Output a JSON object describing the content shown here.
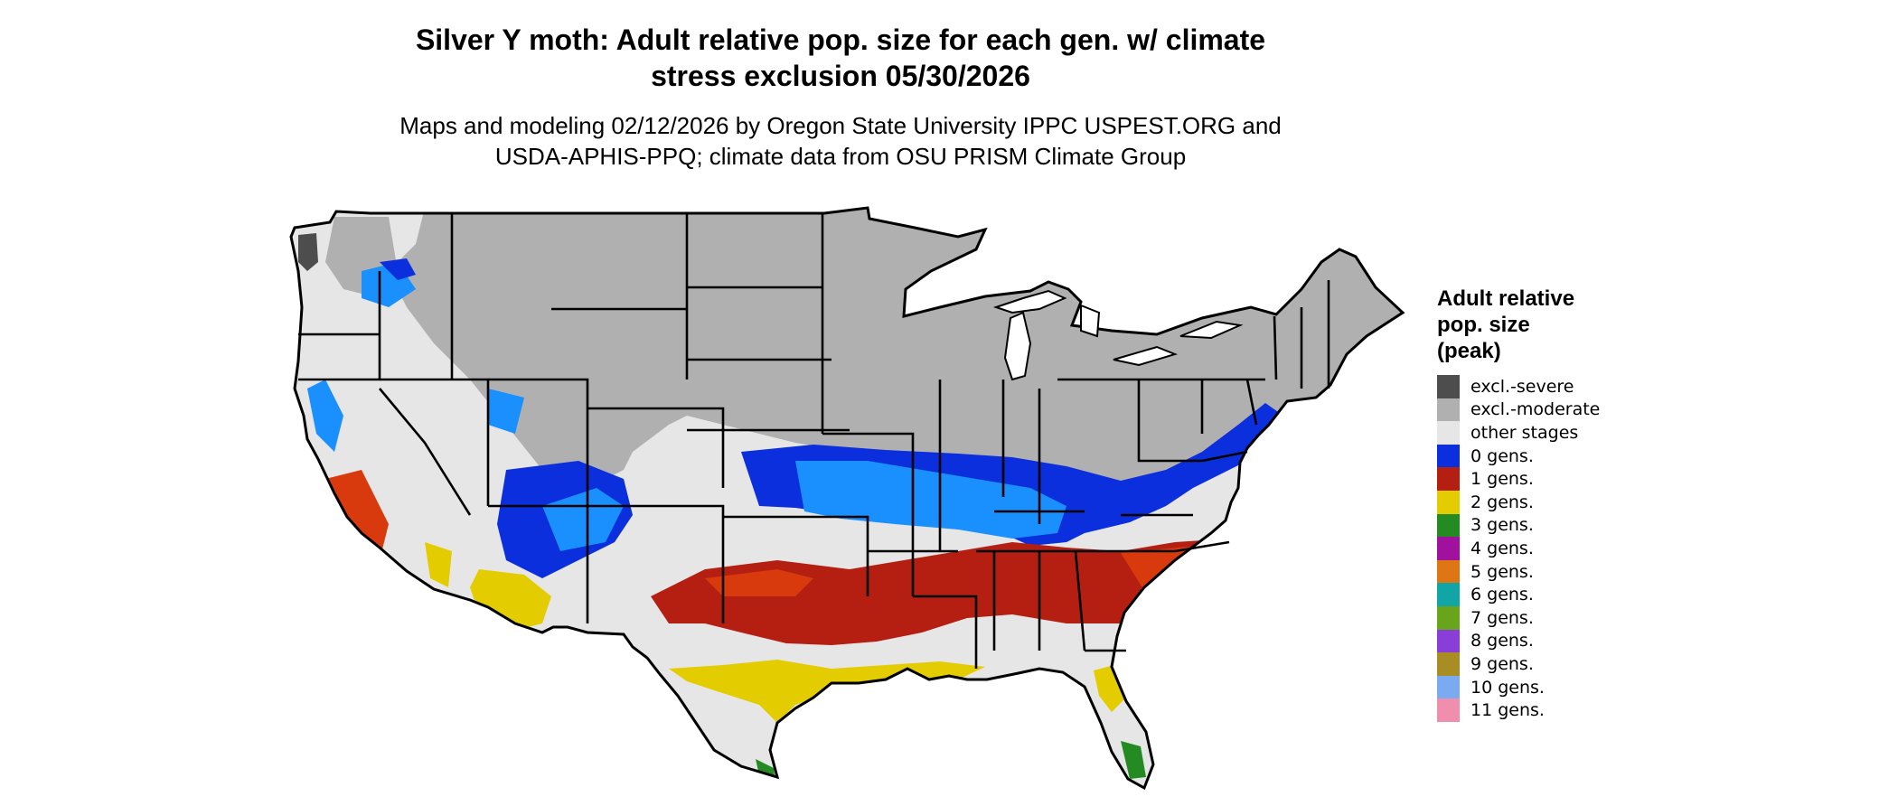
{
  "title": {
    "line1": "Silver Y moth: Adult relative pop. size for each gen. w/ climate",
    "line2": "stress exclusion 05/30/2026"
  },
  "subtitle": {
    "line1": "Maps and modeling 02/12/2026 by Oregon State University IPPC USPEST.ORG and",
    "line2": "USDA-APHIS-PPQ; climate data from OSU PRISM Climate Group"
  },
  "legend": {
    "title_line1": "Adult relative",
    "title_line2": "pop. size",
    "title_line3": "(peak)",
    "items": [
      {
        "label": "excl.-severe",
        "color": "#4d4d4d"
      },
      {
        "label": "excl.-moderate",
        "color": "#b0b0b0"
      },
      {
        "label": "other stages",
        "color": "#e6e6e6"
      },
      {
        "label": "0 gens.",
        "color": "#0b2fdc"
      },
      {
        "label": "1 gens.",
        "color": "#b51f12"
      },
      {
        "label": "2 gens.",
        "color": "#e3cc00"
      },
      {
        "label": "3 gens.",
        "color": "#238b22"
      },
      {
        "label": "4 gens.",
        "color": "#a0129e"
      },
      {
        "label": "5 gens.",
        "color": "#de7613"
      },
      {
        "label": "6 gens.",
        "color": "#12a5a5"
      },
      {
        "label": "7 gens.",
        "color": "#68a51b"
      },
      {
        "label": "8 gens.",
        "color": "#8a3ed8"
      },
      {
        "label": "9 gens.",
        "color": "#a88c24"
      },
      {
        "label": "10 gens.",
        "color": "#7aaaf0"
      },
      {
        "label": "11 gens.",
        "color": "#f08eae"
      }
    ]
  },
  "map_colors": {
    "water": "#ffffff",
    "state_border": "#000000",
    "light_blue": "#1a90ff",
    "red_orange": "#d83a0e"
  }
}
